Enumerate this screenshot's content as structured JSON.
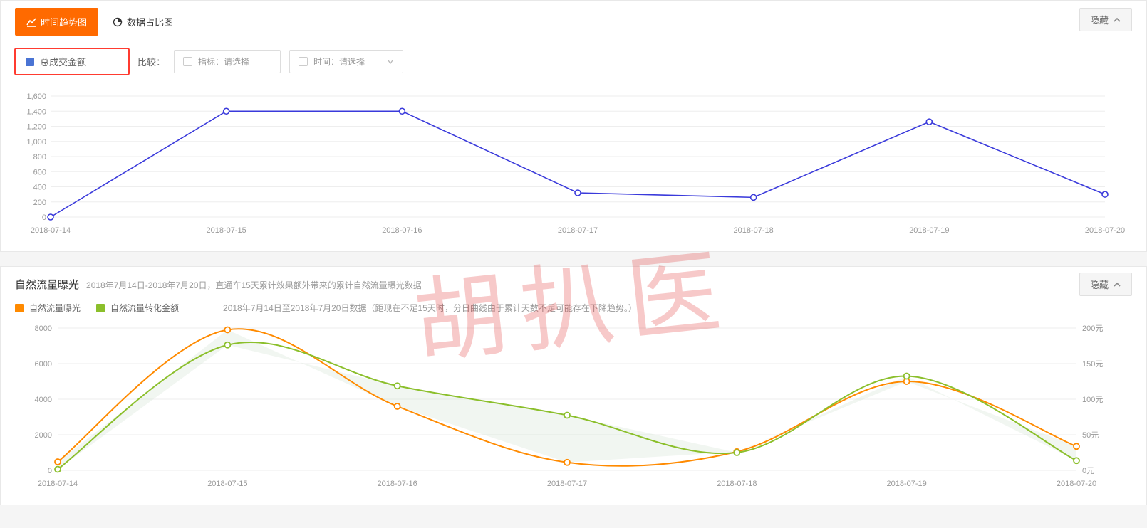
{
  "watermark": "胡扒医",
  "tabs": {
    "trend_label": "时间趋势图",
    "share_label": "数据占比图"
  },
  "hide_label": "隐藏",
  "series_selector": {
    "swatch_color": "#4a74d4",
    "label": "总成交金额",
    "highlighted": true
  },
  "compare": {
    "label": "比较：",
    "metric_prefix": "指标：",
    "metric_placeholder": "请选择",
    "time_prefix": "时间：",
    "time_placeholder": "请选择"
  },
  "chart1": {
    "type": "line",
    "line_color": "#3a3adb",
    "marker_stroke": "#3a3adb",
    "marker_fill": "#ffffff",
    "marker_radius": 4,
    "line_width": 1.6,
    "background_color": "#ffffff",
    "grid_color": "#eeeeee",
    "axis_color": "#cccccc",
    "label_color": "#999999",
    "label_fontsize": 11,
    "x_labels": [
      "2018-07-14",
      "2018-07-15",
      "2018-07-16",
      "2018-07-17",
      "2018-07-18",
      "2018-07-19",
      "2018-07-20"
    ],
    "y_ticks": [
      0,
      200,
      400,
      600,
      800,
      1000,
      1200,
      1400,
      1600
    ],
    "ylim": [
      0,
      1600
    ],
    "values": [
      0,
      1400,
      1400,
      320,
      260,
      1260,
      300
    ]
  },
  "section2": {
    "title": "自然流量曝光",
    "subtitle": "2018年7月14日-2018年7月20日，直通车15天累计效果额外带来的累计自然流量曝光数据",
    "note": "2018年7月14日至2018年7月20日数据（距现在不足15天时，分日曲线由于累计天数不足可能存在下降趋势。）",
    "legend": [
      {
        "label": "自然流量曝光",
        "color": "#ff8a00"
      },
      {
        "label": "自然流量转化金额",
        "color": "#8bbf2b"
      }
    ]
  },
  "chart2": {
    "type": "dual-axis-line",
    "background_color": "#ffffff",
    "grid_color": "#eeeeee",
    "axis_color": "#cccccc",
    "label_color": "#999999",
    "label_fontsize": 11,
    "line_width": 2,
    "marker_radius": 4,
    "marker_fill": "#ffffff",
    "x_labels": [
      "2018-07-14",
      "2018-07-15",
      "2018-07-16",
      "2018-07-17",
      "2018-07-18",
      "2018-07-19",
      "2018-07-20"
    ],
    "y_left_ticks": [
      0,
      2000,
      4000,
      6000,
      8000
    ],
    "y_left_lim": [
      0,
      8000
    ],
    "y_right_ticks_display": [
      "0元",
      "50元",
      "100元",
      "150元",
      "200元"
    ],
    "y_right_ticks": [
      0,
      50,
      100,
      150,
      200
    ],
    "y_right_lim": [
      0,
      200
    ],
    "fill_color": "rgba(200,220,200,0.25)",
    "fill_between": "series",
    "series": [
      {
        "name": "自然流量曝光",
        "color": "#ff8a00",
        "axis": "left",
        "values": [
          480,
          7900,
          3600,
          450,
          1050,
          5000,
          1350
        ],
        "curve": true
      },
      {
        "name": "自然流量转化金额",
        "color": "#8bbf2b",
        "axis": "left",
        "values": [
          60,
          7050,
          4750,
          3100,
          1000,
          5300,
          550
        ],
        "curve": true
      }
    ]
  }
}
